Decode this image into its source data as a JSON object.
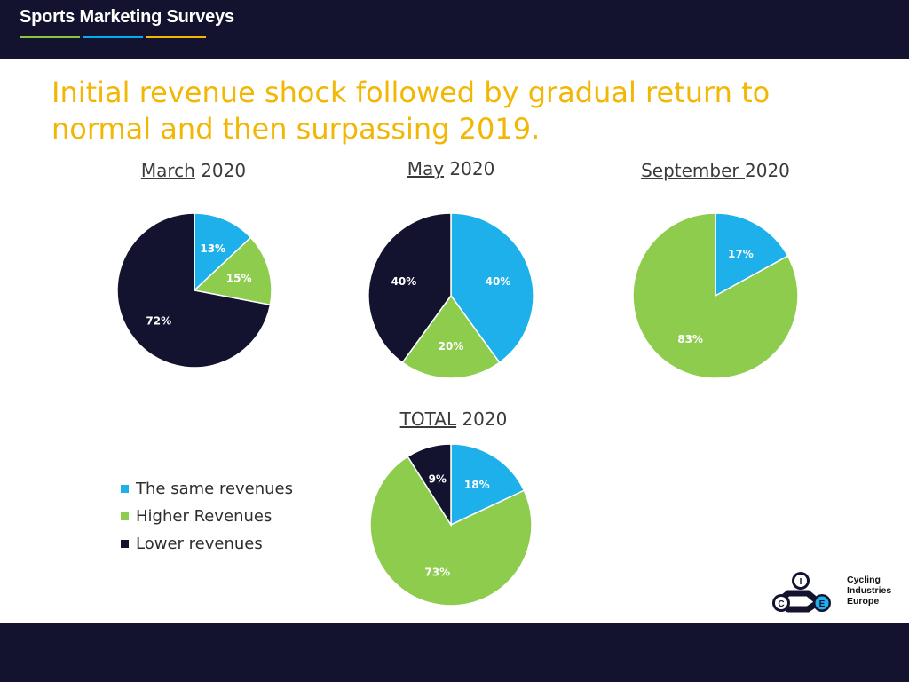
{
  "header": {
    "brand": "Sports Marketing Surveys",
    "stripe_colors": [
      "#8cc63f",
      "#00aeef",
      "#f2b705"
    ]
  },
  "headline": {
    "line1": "Initial revenue shock followed by gradual return to",
    "line2": "normal and then surpassing 2019."
  },
  "legend": [
    {
      "label": "The same revenues",
      "color": "#1db0ea"
    },
    {
      "label": "Higher Revenues",
      "color": "#8dcc4c"
    },
    {
      "label": "Lower revenues",
      "color": "#13132f"
    }
  ],
  "logo": {
    "letters": [
      "C",
      "I",
      "E"
    ],
    "line1": "Cycling",
    "line2": "Industries",
    "line3": "Europe"
  },
  "chart_data": [
    {
      "type": "pie",
      "title_underlined": "March",
      "title_rest": " 2020",
      "slices": [
        {
          "category": "The same revenues",
          "value": 13,
          "label": "13%"
        },
        {
          "category": "Higher Revenues",
          "value": 15,
          "label": "15%"
        },
        {
          "category": "Lower revenues",
          "value": 72,
          "label": "72%"
        }
      ]
    },
    {
      "type": "pie",
      "title_underlined": "May",
      "title_rest": " 2020",
      "slices": [
        {
          "category": "The same revenues",
          "value": 40,
          "label": "40%"
        },
        {
          "category": "Higher Revenues",
          "value": 20,
          "label": "20%"
        },
        {
          "category": "Lower revenues",
          "value": 40,
          "label": "40%"
        }
      ]
    },
    {
      "type": "pie",
      "title_underlined": "September ",
      "title_rest": "2020",
      "slices": [
        {
          "category": "The same revenues",
          "value": 17,
          "label": "17%"
        },
        {
          "category": "Higher Revenues",
          "value": 83,
          "label": "83%"
        }
      ]
    },
    {
      "type": "pie",
      "title_underlined": "TOTAL",
      "title_rest": " 2020",
      "slices": [
        {
          "category": "The same revenues",
          "value": 18,
          "label": "18%"
        },
        {
          "category": "Higher Revenues",
          "value": 73,
          "label": "73%"
        },
        {
          "category": "Lower revenues",
          "value": 9,
          "label": "9%"
        }
      ]
    }
  ]
}
